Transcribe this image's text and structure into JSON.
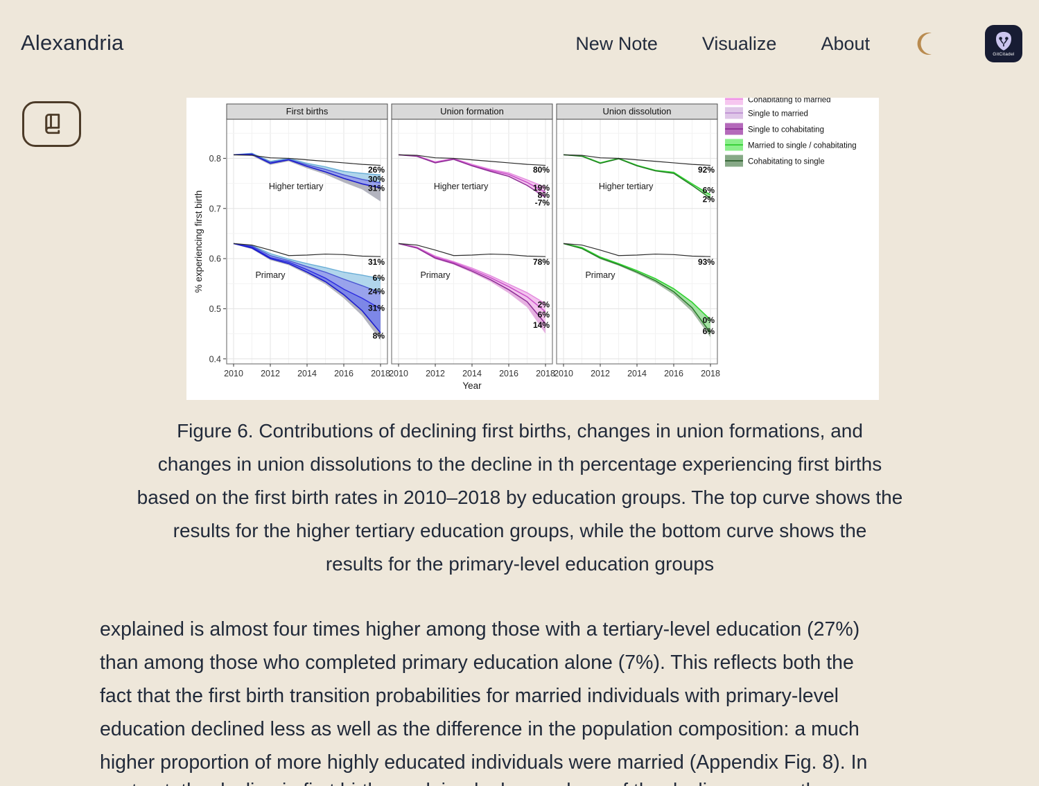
{
  "app": {
    "title": "Alexandria"
  },
  "nav": {
    "items": [
      {
        "label": "New Note"
      },
      {
        "label": "Visualize"
      },
      {
        "label": "About"
      }
    ],
    "logo_label": "GitCitadel"
  },
  "figure": {
    "caption_lines": [
      "Figure 6. Contributions of declining first births, changes in union formations, and",
      "changes in union dissolutions to the decline in th percentage experiencing first births",
      "based on the first birth rates in 2010–2018 by education groups. The top curve shows the",
      "results for the higher tertiary education groups, while the bottom curve shows the",
      "results for the primary-level education groups"
    ]
  },
  "article": {
    "lines": [
      "explained is almost four times higher among those with a tertiary-level education (27%)",
      "than among those who completed primary education alone (7%). This reflects both the",
      "fact that the first birth transition probabilities for married individuals with primary-level",
      "education declined less as well as the difference in the population composition: a much",
      "higher proportion of more highly educated individuals were married (Appendix Fig. 8). In"
    ],
    "partial_line": "contrast, the decline in first births explained a larger share of the decline among those"
  },
  "chart_data": {
    "type": "line",
    "xlabel": "Year",
    "ylabel": "% experiencing first birth",
    "x": [
      2010,
      2011,
      2012,
      2013,
      2014,
      2015,
      2016,
      2017,
      2018
    ],
    "xticks": [
      2010,
      2012,
      2014,
      2016,
      2018
    ],
    "yticks": [
      0.4,
      0.5,
      0.6,
      0.7,
      0.8
    ],
    "yminor": [
      0.45,
      0.55,
      0.65,
      0.75,
      0.85
    ],
    "ylim": [
      0.39,
      0.878
    ],
    "panels": [
      {
        "title": "First births",
        "groups": [
          {
            "name": "Higher tertiary",
            "label_x": 2013.4,
            "label_y": 0.744,
            "series": [
              {
                "color": "#2b2b2b",
                "width": 1.2,
                "values": [
                  0.807,
                  0.806,
                  0.801,
                  0.8,
                  0.797,
                  0.794,
                  0.791,
                  0.788,
                  0.786
                ]
              },
              {
                "color": "#6aaed6",
                "width": 1.4,
                "values": [
                  0.807,
                  0.81,
                  0.794,
                  0.8,
                  0.79,
                  0.783,
                  0.774,
                  0.77,
                  0.767
                ],
                "label": "26%",
                "label_at": 0.778
              },
              {
                "color": "#4a55d2",
                "width": 1.4,
                "values": [
                  0.807,
                  0.809,
                  0.792,
                  0.798,
                  0.787,
                  0.778,
                  0.767,
                  0.758,
                  0.751
                ],
                "label": "30%",
                "label_at": 0.759
              },
              {
                "color": "#1c1ccd",
                "width": 1.6,
                "values": [
                  0.807,
                  0.808,
                  0.79,
                  0.797,
                  0.784,
                  0.773,
                  0.76,
                  0.749,
                  0.741
                ],
                "label": "31%",
                "label_at": 0.741
              },
              {
                "hidden": true,
                "values": [
                  0.806,
                  0.805,
                  0.787,
                  0.794,
                  0.78,
                  0.768,
                  0.752,
                  0.738,
                  0.714
                ]
              }
            ],
            "ribbons": [
              [
                1,
                2,
                "#a8d1ea"
              ],
              [
                2,
                3,
                "#8e99ea"
              ],
              [
                3,
                4,
                "#abacb8"
              ]
            ]
          },
          {
            "name": "Primary",
            "label_x": 2012,
            "label_y": 0.567,
            "series": [
              {
                "color": "#2b2b2b",
                "width": 1.2,
                "values": [
                  0.63,
                  0.627,
                  0.617,
                  0.606,
                  0.607,
                  0.609,
                  0.608,
                  0.605,
                  0.604
                ],
                "label": "31%",
                "label_at": 0.594
              },
              {
                "color": "#6aaed6",
                "width": 1.4,
                "values": [
                  0.63,
                  0.626,
                  0.61,
                  0.599,
                  0.59,
                  0.582,
                  0.573,
                  0.567,
                  0.56
                ],
                "label": "6%",
                "label_at": 0.562
              },
              {
                "color": "#4a55d2",
                "width": 1.4,
                "values": [
                  0.63,
                  0.625,
                  0.606,
                  0.596,
                  0.584,
                  0.573,
                  0.559,
                  0.546,
                  0.532
                ],
                "label": "24%",
                "label_at": 0.535
              },
              {
                "color": "#2a2ae0",
                "width": 1.4,
                "values": [
                  0.63,
                  0.623,
                  0.602,
                  0.593,
                  0.578,
                  0.561,
                  0.539,
                  0.521,
                  0.5
                ],
                "label": "31%",
                "label_at": 0.502
              },
              {
                "color": "#1c1ccd",
                "width": 1.6,
                "values": [
                  0.63,
                  0.621,
                  0.6,
                  0.59,
                  0.573,
                  0.554,
                  0.528,
                  0.496,
                  0.452
                ],
                "label": "8%",
                "label_at": 0.447
              },
              {
                "hidden": true,
                "values": [
                  0.629,
                  0.619,
                  0.597,
                  0.587,
                  0.569,
                  0.549,
                  0.521,
                  0.486,
                  0.437
                ]
              }
            ],
            "ribbons": [
              [
                1,
                2,
                "#a8d1ea"
              ],
              [
                2,
                3,
                "#8e99ea"
              ],
              [
                3,
                4,
                "#6f7ae4"
              ],
              [
                4,
                5,
                "#abacb8"
              ]
            ]
          }
        ]
      },
      {
        "title": "Union formation",
        "groups": [
          {
            "name": "Higher tertiary",
            "label_x": 2013.4,
            "label_y": 0.744,
            "series": [
              {
                "color": "#2b2b2b",
                "width": 1.2,
                "values": [
                  0.807,
                  0.806,
                  0.801,
                  0.8,
                  0.797,
                  0.794,
                  0.791,
                  0.788,
                  0.786
                ],
                "label": "80%",
                "label_at": 0.778
              },
              {
                "color": "#e388de",
                "width": 1.4,
                "values": [
                  0.807,
                  0.805,
                  0.793,
                  0.8,
                  0.788,
                  0.778,
                  0.771,
                  0.757,
                  0.742
                ],
                "label": "19%",
                "label_at": 0.742
              },
              {
                "color": "#c94fc9",
                "width": 1.5,
                "values": [
                  0.807,
                  0.805,
                  0.792,
                  0.799,
                  0.786,
                  0.776,
                  0.768,
                  0.752,
                  0.732
                ],
                "label": "8%",
                "label_at": 0.727
              },
              {
                "color": "#8d2f95",
                "width": 1.5,
                "values": [
                  0.807,
                  0.804,
                  0.791,
                  0.798,
                  0.785,
                  0.774,
                  0.764,
                  0.746,
                  0.722
                ],
                "label": "-7%",
                "label_at": 0.712
              }
            ],
            "ribbons": [
              [
                1,
                3,
                "#f2bcec"
              ]
            ]
          },
          {
            "name": "Primary",
            "label_x": 2012,
            "label_y": 0.567,
            "series": [
              {
                "color": "#2b2b2b",
                "width": 1.2,
                "values": [
                  0.63,
                  0.627,
                  0.617,
                  0.606,
                  0.607,
                  0.609,
                  0.608,
                  0.605,
                  0.604
                ],
                "label": "78%",
                "label_at": 0.594
              },
              {
                "color": "#e388de",
                "width": 1.4,
                "values": [
                  0.63,
                  0.623,
                  0.605,
                  0.594,
                  0.581,
                  0.566,
                  0.549,
                  0.532,
                  0.51
                ],
                "label": "2%",
                "label_at": 0.509
              },
              {
                "color": "#c94fc9",
                "width": 1.5,
                "values": [
                  0.63,
                  0.622,
                  0.603,
                  0.592,
                  0.578,
                  0.562,
                  0.544,
                  0.524,
                  0.494
                ],
                "label": "6%",
                "label_at": 0.489
              },
              {
                "color": "#8d2f95",
                "width": 1.5,
                "values": [
                  0.63,
                  0.621,
                  0.601,
                  0.59,
                  0.575,
                  0.558,
                  0.538,
                  0.514,
                  0.47
                ],
                "label": "14%",
                "label_at": 0.468
              },
              {
                "hidden": true,
                "values": [
                  0.629,
                  0.62,
                  0.599,
                  0.588,
                  0.572,
                  0.554,
                  0.531,
                  0.503,
                  0.45
                ]
              }
            ],
            "ribbons": [
              [
                1,
                3,
                "#f2bcec"
              ],
              [
                3,
                4,
                "#e3a8de"
              ]
            ]
          }
        ]
      },
      {
        "title": "Union dissolution",
        "groups": [
          {
            "name": "Higher tertiary",
            "label_x": 2013.4,
            "label_y": 0.744,
            "series": [
              {
                "color": "#2b2b2b",
                "width": 1.2,
                "values": [
                  0.807,
                  0.806,
                  0.801,
                  0.8,
                  0.797,
                  0.794,
                  0.791,
                  0.788,
                  0.786
                ],
                "label": "92%",
                "label_at": 0.778
              },
              {
                "color": "#2fd32f",
                "width": 1.6,
                "values": [
                  0.807,
                  0.805,
                  0.791,
                  0.8,
                  0.786,
                  0.776,
                  0.772,
                  0.749,
                  0.727
                ],
                "label": "6%",
                "label_at": 0.737
              },
              {
                "color": "#237a23",
                "width": 1.4,
                "values": [
                  0.807,
                  0.804,
                  0.79,
                  0.799,
                  0.785,
                  0.775,
                  0.77,
                  0.746,
                  0.72
                ],
                "label": "2%",
                "label_at": 0.719
              }
            ],
            "ribbons": [
              [
                1,
                2,
                "#9adf9a"
              ]
            ]
          },
          {
            "name": "Primary",
            "label_x": 2012,
            "label_y": 0.567,
            "series": [
              {
                "color": "#2b2b2b",
                "width": 1.2,
                "values": [
                  0.63,
                  0.627,
                  0.617,
                  0.606,
                  0.607,
                  0.609,
                  0.608,
                  0.605,
                  0.604
                ],
                "label": "93%",
                "label_at": 0.594
              },
              {
                "color": "#2fd32f",
                "width": 1.6,
                "values": [
                  0.63,
                  0.622,
                  0.603,
                  0.59,
                  0.576,
                  0.56,
                  0.54,
                  0.513,
                  0.478
                ],
                "label": "0%",
                "label_at": 0.478
              },
              {
                "color": "#237a23",
                "width": 1.4,
                "values": [
                  0.63,
                  0.62,
                  0.601,
                  0.588,
                  0.573,
                  0.556,
                  0.534,
                  0.502,
                  0.452
                ],
                "label": "6%",
                "label_at": 0.456
              },
              {
                "hidden": true,
                "values": [
                  0.629,
                  0.619,
                  0.599,
                  0.586,
                  0.57,
                  0.552,
                  0.528,
                  0.494,
                  0.443
                ]
              }
            ],
            "ribbons": [
              [
                1,
                2,
                "#9adf9a"
              ],
              [
                2,
                3,
                "#9ab59a"
              ]
            ]
          }
        ]
      }
    ],
    "legend": {
      "entries": [
        {
          "label": "Cohabitating to married",
          "fill": "#f6c6ef",
          "line": "#ee8ae4",
          "clipped": true
        },
        {
          "label": "Single to married",
          "fill": "#dfc6e8",
          "line": "#bd8fd2"
        },
        {
          "label": "Single to cohabitating",
          "fill": "#b469ba",
          "line": "#8d2f95"
        },
        {
          "label": "Married to single / cohabitating",
          "fill": "#8bef8b",
          "line": "#2ecc2e"
        },
        {
          "label": "Cohabitating to single",
          "fill": "#87a987",
          "line": "#2f5f2f"
        }
      ]
    }
  }
}
